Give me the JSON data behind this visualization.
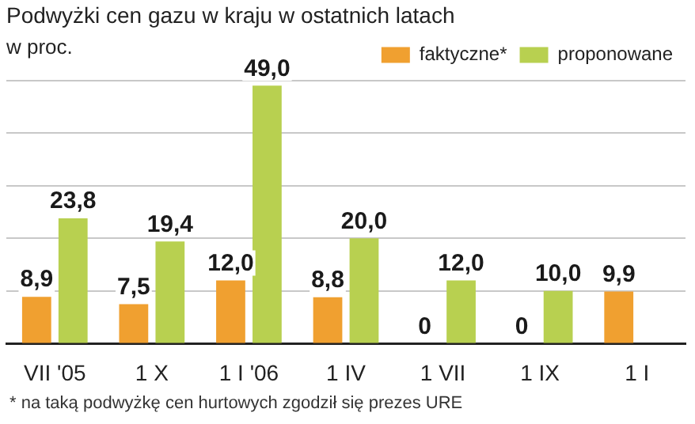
{
  "chart_data": {
    "type": "bar",
    "title": "Podwyżki cen gazu w kraju w ostatnich latach",
    "ylabel": "w proc.",
    "categories": [
      "VII '05",
      "1 X",
      "1 I '06",
      "1 IV",
      "1 VII",
      "1 IX",
      "1 I"
    ],
    "series": [
      {
        "name": "faktyczne*",
        "color": "#f0a030",
        "values": [
          8.9,
          7.5,
          12.0,
          8.8,
          0,
          0,
          9.9
        ],
        "value_labels": [
          "8,9",
          "7,5",
          "12,0",
          "8,8",
          "0",
          "0",
          "9,9"
        ]
      },
      {
        "name": "proponowane",
        "color": "#b8d050",
        "values": [
          23.8,
          19.4,
          49.0,
          20.0,
          12.0,
          10.0,
          null
        ],
        "value_labels": [
          "23,8",
          "19,4",
          "49,0",
          "20,0",
          "12,0",
          "10,0",
          null
        ]
      }
    ],
    "ylim": [
      0,
      50
    ],
    "yticks": [
      {
        "value": 0,
        "label": null
      },
      {
        "value": 10,
        "label": null
      },
      {
        "value": 20,
        "label": null
      },
      {
        "value": 30,
        "label": null
      },
      {
        "value": 40,
        "label": null
      },
      {
        "value": 50,
        "label": null
      }
    ],
    "grid": "y",
    "tick_labels": "x",
    "legend": "top right",
    "annotations": [
      "* na taką podwyżkę cen hurtowych zgodził się prezes URE"
    ]
  }
}
